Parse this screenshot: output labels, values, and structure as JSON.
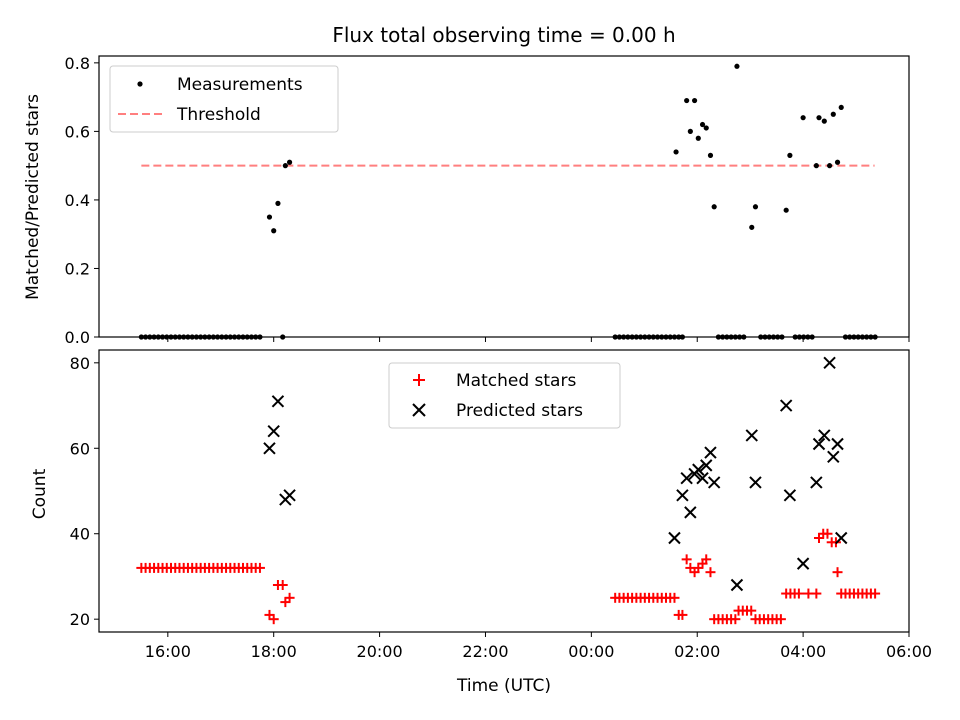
{
  "chart_data": [
    {
      "type": "scatter",
      "title": "Flux total observing time = 0.00 h",
      "xlabel": "",
      "ylabel": "Matched/Predicted stars",
      "x_unit": "hours since 15:00 UTC (axis shows clock time)",
      "xlim": [
        -0.3,
        15.0
      ],
      "ylim": [
        0.0,
        0.82
      ],
      "yticks": [
        "0.0",
        "0.2",
        "0.4",
        "0.6",
        "0.8"
      ],
      "legend": {
        "placement": "top-left",
        "entries": [
          "Measurements",
          "Threshold"
        ]
      },
      "series": [
        {
          "name": "Measurements",
          "marker": "dot",
          "color": "#000000",
          "points": [
            [
              0.5,
              0
            ],
            [
              0.58,
              0
            ],
            [
              0.66,
              0
            ],
            [
              0.74,
              0
            ],
            [
              0.82,
              0
            ],
            [
              0.9,
              0
            ],
            [
              0.98,
              0
            ],
            [
              1.06,
              0
            ],
            [
              1.14,
              0
            ],
            [
              1.22,
              0
            ],
            [
              1.3,
              0
            ],
            [
              1.38,
              0
            ],
            [
              1.46,
              0
            ],
            [
              1.54,
              0
            ],
            [
              1.62,
              0
            ],
            [
              1.7,
              0
            ],
            [
              1.78,
              0
            ],
            [
              1.86,
              0
            ],
            [
              1.94,
              0
            ],
            [
              2.02,
              0
            ],
            [
              2.1,
              0
            ],
            [
              2.18,
              0
            ],
            [
              2.26,
              0
            ],
            [
              2.34,
              0
            ],
            [
              2.42,
              0
            ],
            [
              2.5,
              0
            ],
            [
              2.58,
              0
            ],
            [
              2.66,
              0
            ],
            [
              2.74,
              0
            ],
            [
              2.92,
              0.35
            ],
            [
              3.0,
              0.31
            ],
            [
              3.08,
              0.39
            ],
            [
              3.17,
              0.0
            ],
            [
              3.22,
              0.5
            ],
            [
              3.3,
              0.51
            ],
            [
              9.45,
              0
            ],
            [
              9.53,
              0
            ],
            [
              9.61,
              0
            ],
            [
              9.69,
              0
            ],
            [
              9.77,
              0
            ],
            [
              9.85,
              0
            ],
            [
              9.93,
              0
            ],
            [
              10.01,
              0
            ],
            [
              10.09,
              0
            ],
            [
              10.17,
              0
            ],
            [
              10.25,
              0
            ],
            [
              10.33,
              0
            ],
            [
              10.41,
              0
            ],
            [
              10.49,
              0
            ],
            [
              10.57,
              0
            ],
            [
              10.65,
              0
            ],
            [
              10.72,
              0
            ],
            [
              10.6,
              0.54
            ],
            [
              10.8,
              0.69
            ],
            [
              10.87,
              0.6
            ],
            [
              10.95,
              0.69
            ],
            [
              11.02,
              0.58
            ],
            [
              11.1,
              0.62
            ],
            [
              11.17,
              0.61
            ],
            [
              11.25,
              0.53
            ],
            [
              11.32,
              0.38
            ],
            [
              11.4,
              0
            ],
            [
              11.48,
              0
            ],
            [
              11.56,
              0
            ],
            [
              11.64,
              0
            ],
            [
              11.72,
              0
            ],
            [
              11.8,
              0
            ],
            [
              11.88,
              0
            ],
            [
              11.75,
              0.79
            ],
            [
              12.03,
              0.32
            ],
            [
              12.1,
              0.38
            ],
            [
              12.2,
              0
            ],
            [
              12.28,
              0
            ],
            [
              12.36,
              0
            ],
            [
              12.44,
              0
            ],
            [
              12.52,
              0
            ],
            [
              12.6,
              0
            ],
            [
              12.68,
              0.37
            ],
            [
              12.75,
              0.53
            ],
            [
              12.85,
              0
            ],
            [
              12.93,
              0
            ],
            [
              13.01,
              0
            ],
            [
              13.09,
              0
            ],
            [
              13.17,
              0
            ],
            [
              13.0,
              0.64
            ],
            [
              13.25,
              0.5
            ],
            [
              13.3,
              0.64
            ],
            [
              13.4,
              0.63
            ],
            [
              13.5,
              0.5
            ],
            [
              13.57,
              0.65
            ],
            [
              13.65,
              0.51
            ],
            [
              13.72,
              0.67
            ],
            [
              13.8,
              0
            ],
            [
              13.88,
              0
            ],
            [
              13.96,
              0
            ],
            [
              14.04,
              0
            ],
            [
              14.12,
              0
            ],
            [
              14.2,
              0
            ],
            [
              14.28,
              0
            ],
            [
              14.36,
              0
            ]
          ]
        },
        {
          "name": "Threshold",
          "marker": "dashed-line",
          "color": "#ff7f7f",
          "points": [
            [
              0.5,
              0.5
            ],
            [
              14.35,
              0.5
            ]
          ]
        }
      ]
    },
    {
      "type": "scatter",
      "title": "",
      "xlabel": "Time (UTC)",
      "ylabel": "Count",
      "x_unit": "hours since 15:00 UTC (axis shows clock time)",
      "xlim": [
        -0.3,
        15.0
      ],
      "ylim": [
        17,
        83
      ],
      "xticks": [
        {
          "value": 1,
          "label": "16:00"
        },
        {
          "value": 3,
          "label": "18:00"
        },
        {
          "value": 5,
          "label": "20:00"
        },
        {
          "value": 7,
          "label": "22:00"
        },
        {
          "value": 9,
          "label": "00:00"
        },
        {
          "value": 11,
          "label": "02:00"
        },
        {
          "value": 13,
          "label": "04:00"
        },
        {
          "value": 15,
          "label": "06:00"
        }
      ],
      "yticks": [
        "20",
        "40",
        "60",
        "80"
      ],
      "legend": {
        "placement": "top-center",
        "entries": [
          "Matched stars",
          "Predicted stars"
        ]
      },
      "series": [
        {
          "name": "Matched stars",
          "marker": "plus",
          "color": "#ff0000",
          "points": [
            [
              0.5,
              32
            ],
            [
              0.58,
              32
            ],
            [
              0.66,
              32
            ],
            [
              0.74,
              32
            ],
            [
              0.82,
              32
            ],
            [
              0.9,
              32
            ],
            [
              0.98,
              32
            ],
            [
              1.06,
              32
            ],
            [
              1.14,
              32
            ],
            [
              1.22,
              32
            ],
            [
              1.3,
              32
            ],
            [
              1.38,
              32
            ],
            [
              1.46,
              32
            ],
            [
              1.54,
              32
            ],
            [
              1.62,
              32
            ],
            [
              1.7,
              32
            ],
            [
              1.78,
              32
            ],
            [
              1.86,
              32
            ],
            [
              1.94,
              32
            ],
            [
              2.02,
              32
            ],
            [
              2.1,
              32
            ],
            [
              2.18,
              32
            ],
            [
              2.26,
              32
            ],
            [
              2.34,
              32
            ],
            [
              2.42,
              32
            ],
            [
              2.5,
              32
            ],
            [
              2.58,
              32
            ],
            [
              2.66,
              32
            ],
            [
              2.74,
              32
            ],
            [
              2.92,
              21
            ],
            [
              3.0,
              20
            ],
            [
              3.08,
              28
            ],
            [
              3.17,
              28
            ],
            [
              3.22,
              24
            ],
            [
              3.3,
              25
            ],
            [
              9.45,
              25
            ],
            [
              9.53,
              25
            ],
            [
              9.61,
              25
            ],
            [
              9.69,
              25
            ],
            [
              9.77,
              25
            ],
            [
              9.85,
              25
            ],
            [
              9.93,
              25
            ],
            [
              10.01,
              25
            ],
            [
              10.09,
              25
            ],
            [
              10.17,
              25
            ],
            [
              10.25,
              25
            ],
            [
              10.33,
              25
            ],
            [
              10.41,
              25
            ],
            [
              10.49,
              25
            ],
            [
              10.57,
              25
            ],
            [
              10.65,
              21
            ],
            [
              10.72,
              21
            ],
            [
              10.8,
              34
            ],
            [
              10.87,
              32
            ],
            [
              10.95,
              31
            ],
            [
              11.02,
              32
            ],
            [
              11.1,
              33
            ],
            [
              11.17,
              34
            ],
            [
              11.25,
              31
            ],
            [
              11.32,
              20
            ],
            [
              11.4,
              20
            ],
            [
              11.48,
              20
            ],
            [
              11.56,
              20
            ],
            [
              11.64,
              20
            ],
            [
              11.72,
              20
            ],
            [
              11.78,
              22
            ],
            [
              11.86,
              22
            ],
            [
              11.94,
              22
            ],
            [
              12.02,
              22
            ],
            [
              12.1,
              20
            ],
            [
              12.18,
              20
            ],
            [
              12.26,
              20
            ],
            [
              12.34,
              20
            ],
            [
              12.42,
              20
            ],
            [
              12.5,
              20
            ],
            [
              12.58,
              20
            ],
            [
              12.68,
              26
            ],
            [
              12.76,
              26
            ],
            [
              12.84,
              26
            ],
            [
              12.92,
              26
            ],
            [
              13.1,
              26
            ],
            [
              13.25,
              26
            ],
            [
              13.3,
              39
            ],
            [
              13.38,
              40
            ],
            [
              13.46,
              40
            ],
            [
              13.54,
              38
            ],
            [
              13.62,
              38
            ],
            [
              13.65,
              31
            ],
            [
              13.72,
              26
            ],
            [
              13.8,
              26
            ],
            [
              13.88,
              26
            ],
            [
              13.96,
              26
            ],
            [
              14.04,
              26
            ],
            [
              14.12,
              26
            ],
            [
              14.2,
              26
            ],
            [
              14.28,
              26
            ],
            [
              14.36,
              26
            ]
          ]
        },
        {
          "name": "Predicted stars",
          "marker": "x",
          "color": "#000000",
          "points": [
            [
              2.92,
              60
            ],
            [
              3.0,
              64
            ],
            [
              3.08,
              71
            ],
            [
              3.22,
              48
            ],
            [
              3.3,
              49
            ],
            [
              10.57,
              39
            ],
            [
              10.72,
              49
            ],
            [
              10.8,
              53
            ],
            [
              10.87,
              45
            ],
            [
              10.95,
              54
            ],
            [
              11.02,
              55
            ],
            [
              11.1,
              53
            ],
            [
              11.17,
              56
            ],
            [
              11.25,
              59
            ],
            [
              11.32,
              52
            ],
            [
              11.75,
              28
            ],
            [
              12.03,
              63
            ],
            [
              12.1,
              52
            ],
            [
              12.68,
              70
            ],
            [
              12.75,
              49
            ],
            [
              13.0,
              33
            ],
            [
              13.25,
              52
            ],
            [
              13.3,
              61
            ],
            [
              13.4,
              63
            ],
            [
              13.5,
              80
            ],
            [
              13.57,
              58
            ],
            [
              13.65,
              61
            ],
            [
              13.72,
              39
            ]
          ]
        }
      ]
    }
  ]
}
